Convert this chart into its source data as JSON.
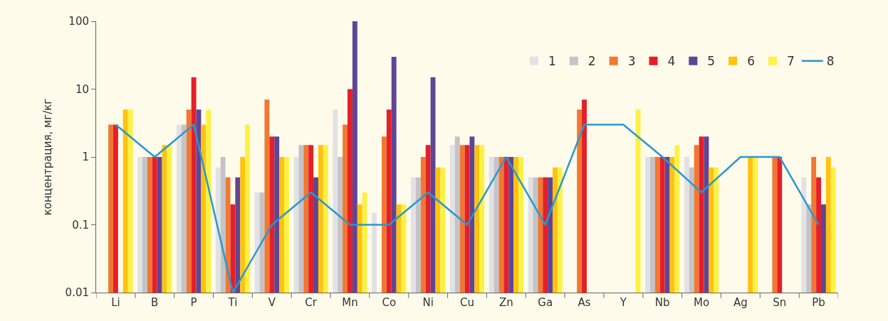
{
  "chart_data": {
    "type": "bar",
    "ylabel": "концентрация, мг/кг",
    "categories": [
      "Li",
      "B",
      "P",
      "Ti",
      "V",
      "Cr",
      "Mn",
      "Co",
      "Ni",
      "Cu",
      "Zn",
      "Ga",
      "As",
      "Y",
      "Nb",
      "Mo",
      "Ag",
      "Sn",
      "Pb"
    ],
    "series": [
      {
        "name": "1",
        "color": "#e2e2e4",
        "values": [
          null,
          1,
          3,
          0.7,
          0.3,
          1,
          5,
          0.15,
          0.5,
          1.5,
          1,
          0.5,
          null,
          null,
          1,
          1,
          null,
          null,
          0.5
        ]
      },
      {
        "name": "2",
        "color": "#c3c4c9",
        "values": [
          null,
          1,
          3,
          1,
          0.3,
          1.5,
          1,
          null,
          0.5,
          2,
          1,
          0.5,
          null,
          null,
          1,
          0.7,
          null,
          null,
          0.2
        ]
      },
      {
        "name": "3",
        "color": "#f07832",
        "values": [
          3,
          1,
          5,
          0.5,
          7,
          1.5,
          3,
          2,
          1,
          1.5,
          1,
          0.5,
          5,
          null,
          1,
          1.5,
          null,
          1,
          1
        ]
      },
      {
        "name": "4",
        "color": "#e51f28",
        "values": [
          3,
          1,
          15,
          0.2,
          2,
          1.5,
          10,
          5,
          1.5,
          1.5,
          1,
          0.5,
          7,
          null,
          1,
          2,
          null,
          1,
          0.5
        ]
      },
      {
        "name": "5",
        "color": "#5f4595",
        "values": [
          null,
          1,
          5,
          0.5,
          2,
          0.5,
          100,
          30,
          15,
          2,
          1,
          0.5,
          null,
          null,
          1,
          2,
          null,
          null,
          0.2
        ]
      },
      {
        "name": "6",
        "color": "#ffc20f",
        "values": [
          5,
          1.5,
          3,
          1,
          1,
          1.5,
          0.2,
          0.2,
          0.7,
          1.5,
          1,
          0.7,
          null,
          null,
          1,
          0.7,
          1,
          null,
          1
        ]
      },
      {
        "name": "7",
        "color": "#fff044",
        "values": [
          5,
          1.5,
          5,
          3,
          1,
          1.5,
          0.3,
          0.2,
          0.7,
          1.5,
          1,
          0.7,
          null,
          5,
          1.5,
          0.7,
          1,
          null,
          0.7
        ]
      },
      {
        "name": "8",
        "type": "line",
        "color": "#2a98cf",
        "values": [
          3,
          1,
          3,
          0.01,
          0.1,
          0.3,
          0.1,
          0.1,
          0.3,
          0.1,
          1,
          0.1,
          3,
          3,
          1,
          0.3,
          1,
          1,
          0.1
        ]
      }
    ],
    "log": true,
    "ylim": [
      0.01,
      100
    ],
    "yticks": [
      {
        "value": 0.01,
        "label": "0.01"
      },
      {
        "value": 0.1,
        "label": "0.1"
      },
      1,
      10,
      100
    ],
    "legend": "top right",
    "grid": false,
    "marker": "none"
  }
}
